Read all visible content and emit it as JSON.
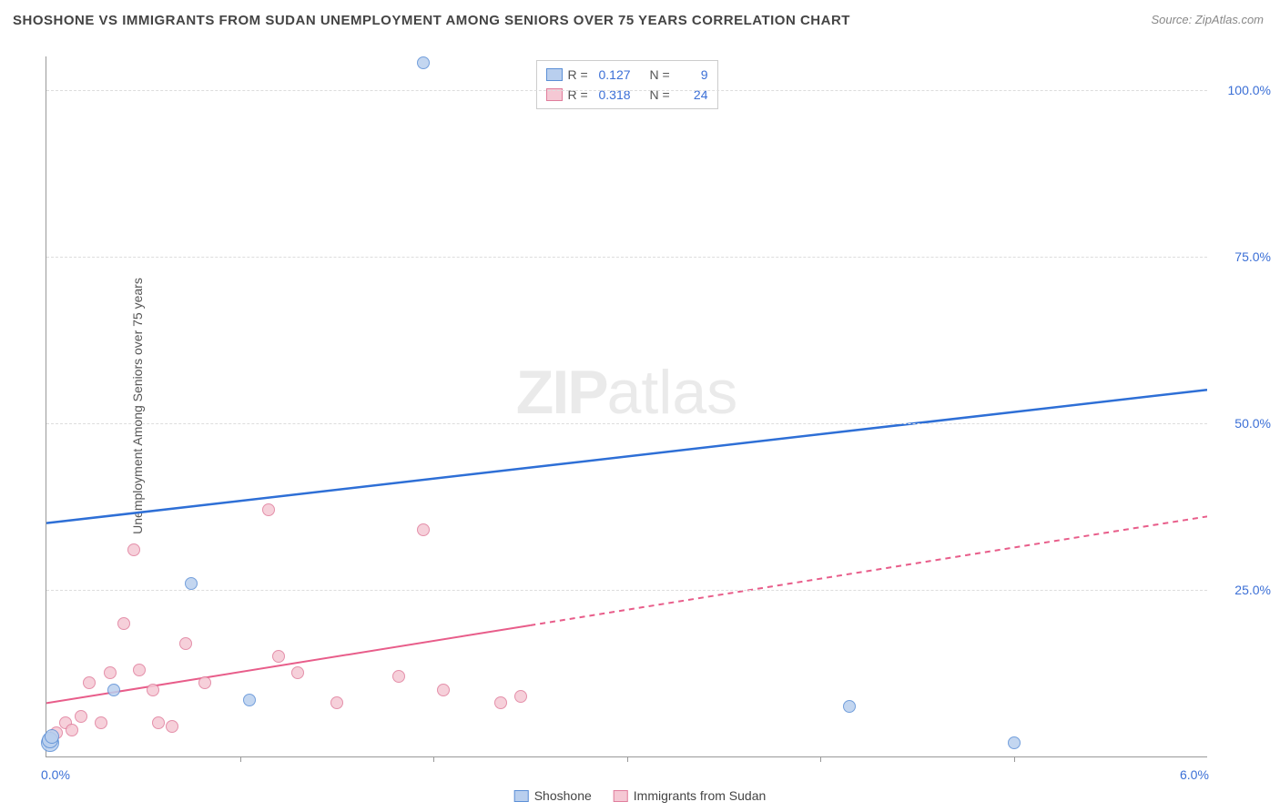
{
  "chart": {
    "type": "scatter",
    "title": "SHOSHONE VS IMMIGRANTS FROM SUDAN UNEMPLOYMENT AMONG SENIORS OVER 75 YEARS CORRELATION CHART",
    "source": "Source: ZipAtlas.com",
    "ylabel": "Unemployment Among Seniors over 75 years",
    "watermark_a": "ZIP",
    "watermark_b": "atlas",
    "xlim": [
      0,
      6
    ],
    "ylim": [
      0,
      105
    ],
    "xtick_labels": {
      "0": "0.0%",
      "6": "6.0%"
    },
    "xticks_minor": [
      1,
      2,
      3,
      4,
      5
    ],
    "yticks": [
      25,
      50,
      75,
      100
    ],
    "ytick_labels": {
      "25": "25.0%",
      "50": "50.0%",
      "75": "75.0%",
      "100": "100.0%"
    },
    "background_color": "#ffffff",
    "grid_color": "#dddddd",
    "axis_color": "#999999",
    "label_color": "#555555",
    "tick_label_color": "#3b6fd6",
    "series": [
      {
        "name": "Shoshone",
        "fill": "#b9cfee",
        "stroke": "#5b8fd6",
        "trend_color": "#2e6fd6",
        "trend_width": 2.5,
        "trend_dash_from_x": null,
        "R": "0.127",
        "N": "9",
        "trend": {
          "x1": 0,
          "y1": 35,
          "x2": 6,
          "y2": 55
        },
        "points": [
          {
            "x": 0.02,
            "y": 2,
            "r": 10
          },
          {
            "x": 0.02,
            "y": 2.5,
            "r": 9
          },
          {
            "x": 0.03,
            "y": 3,
            "r": 8
          },
          {
            "x": 0.35,
            "y": 10,
            "r": 7
          },
          {
            "x": 0.75,
            "y": 26,
            "r": 7
          },
          {
            "x": 1.05,
            "y": 8.5,
            "r": 7
          },
          {
            "x": 1.95,
            "y": 104,
            "r": 7
          },
          {
            "x": 4.15,
            "y": 7.5,
            "r": 7
          },
          {
            "x": 5.0,
            "y": 2,
            "r": 7
          }
        ]
      },
      {
        "name": "Immigrants from Sudan",
        "fill": "#f5c8d4",
        "stroke": "#e07d9c",
        "trend_color": "#e85d8a",
        "trend_width": 2,
        "trend_dash_from_x": 2.5,
        "R": "0.318",
        "N": "24",
        "trend": {
          "x1": 0,
          "y1": 8,
          "x2": 6,
          "y2": 36
        },
        "points": [
          {
            "x": 0.05,
            "y": 3.5,
            "r": 7
          },
          {
            "x": 0.1,
            "y": 5,
            "r": 7
          },
          {
            "x": 0.13,
            "y": 4,
            "r": 7
          },
          {
            "x": 0.18,
            "y": 6,
            "r": 7
          },
          {
            "x": 0.22,
            "y": 11,
            "r": 7
          },
          {
            "x": 0.28,
            "y": 5,
            "r": 7
          },
          {
            "x": 0.33,
            "y": 12.5,
            "r": 7
          },
          {
            "x": 0.4,
            "y": 20,
            "r": 7
          },
          {
            "x": 0.45,
            "y": 31,
            "r": 7
          },
          {
            "x": 0.48,
            "y": 13,
            "r": 7
          },
          {
            "x": 0.55,
            "y": 10,
            "r": 7
          },
          {
            "x": 0.58,
            "y": 5,
            "r": 7
          },
          {
            "x": 0.65,
            "y": 4.5,
            "r": 7
          },
          {
            "x": 0.72,
            "y": 17,
            "r": 7
          },
          {
            "x": 0.82,
            "y": 11,
            "r": 7
          },
          {
            "x": 1.15,
            "y": 37,
            "r": 7
          },
          {
            "x": 1.2,
            "y": 15,
            "r": 7
          },
          {
            "x": 1.3,
            "y": 12.5,
            "r": 7
          },
          {
            "x": 1.5,
            "y": 8,
            "r": 7
          },
          {
            "x": 1.82,
            "y": 12,
            "r": 7
          },
          {
            "x": 1.95,
            "y": 34,
            "r": 7
          },
          {
            "x": 2.05,
            "y": 10,
            "r": 7
          },
          {
            "x": 2.35,
            "y": 8,
            "r": 7
          },
          {
            "x": 2.45,
            "y": 9,
            "r": 7
          }
        ]
      }
    ],
    "legend_bottom": [
      {
        "label": "Shoshone",
        "fill": "#b9cfee",
        "stroke": "#5b8fd6"
      },
      {
        "label": "Immigrants from Sudan",
        "fill": "#f5c8d4",
        "stroke": "#e07d9c"
      }
    ]
  }
}
